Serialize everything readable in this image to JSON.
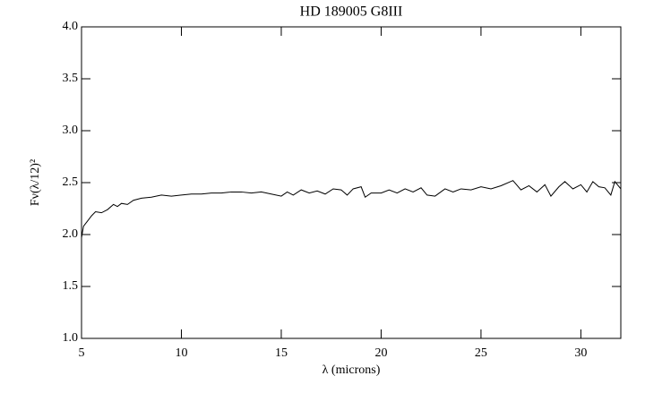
{
  "chart_data": {
    "type": "line",
    "title": "HD 189005 G8III",
    "x_label": "λ (microns)",
    "y_label": "Fν(λ/12)²",
    "color": "#000000",
    "xlim": [
      5,
      32
    ],
    "xticks": [
      5,
      10,
      15,
      20,
      25,
      30
    ],
    "ylim": [
      1,
      4
    ],
    "yticks": [
      {
        "value": 1,
        "label": "1.0"
      },
      1.5,
      {
        "value": 2,
        "label": "2.0"
      },
      2.5,
      {
        "value": 3,
        "label": "3.0"
      },
      3.5,
      {
        "value": 4,
        "label": "4.0"
      }
    ],
    "x": [
      5.0,
      5.1,
      5.3,
      5.5,
      5.7,
      6.0,
      6.3,
      6.6,
      6.8,
      7.0,
      7.3,
      7.6,
      8.0,
      8.5,
      9.0,
      9.5,
      10,
      10.5,
      11,
      11.5,
      12,
      12.5,
      13,
      13.5,
      14,
      14.5,
      15,
      15.3,
      15.6,
      16,
      16.4,
      16.8,
      17.2,
      17.6,
      18.0,
      18.3,
      18.6,
      19.0,
      19.2,
      19.5,
      20,
      20.4,
      20.8,
      21.2,
      21.6,
      22,
      22.3,
      22.7,
      23.2,
      23.6,
      24,
      24.5,
      25,
      25.5,
      26,
      26.6,
      27,
      27.4,
      27.8,
      28.2,
      28.5,
      28.9,
      29.2,
      29.6,
      30,
      30.3,
      30.6,
      30.9,
      31.2,
      31.5,
      31.7,
      32
    ],
    "series": [
      {
        "values": [
          1.97,
          2.08,
          2.13,
          2.18,
          2.22,
          2.21,
          2.24,
          2.29,
          2.27,
          2.3,
          2.29,
          2.33,
          2.35,
          2.36,
          2.38,
          2.37,
          2.38,
          2.39,
          2.39,
          2.4,
          2.4,
          2.41,
          2.41,
          2.4,
          2.41,
          2.39,
          2.37,
          2.41,
          2.38,
          2.43,
          2.4,
          2.42,
          2.39,
          2.44,
          2.43,
          2.38,
          2.44,
          2.46,
          2.36,
          2.4,
          2.4,
          2.43,
          2.4,
          2.44,
          2.41,
          2.45,
          2.38,
          2.37,
          2.44,
          2.41,
          2.44,
          2.43,
          2.46,
          2.44,
          2.47,
          2.52,
          2.43,
          2.47,
          2.41,
          2.48,
          2.37,
          2.46,
          2.51,
          2.44,
          2.48,
          2.41,
          2.51,
          2.46,
          2.45,
          2.38,
          2.51,
          2.44
        ]
      }
    ]
  }
}
